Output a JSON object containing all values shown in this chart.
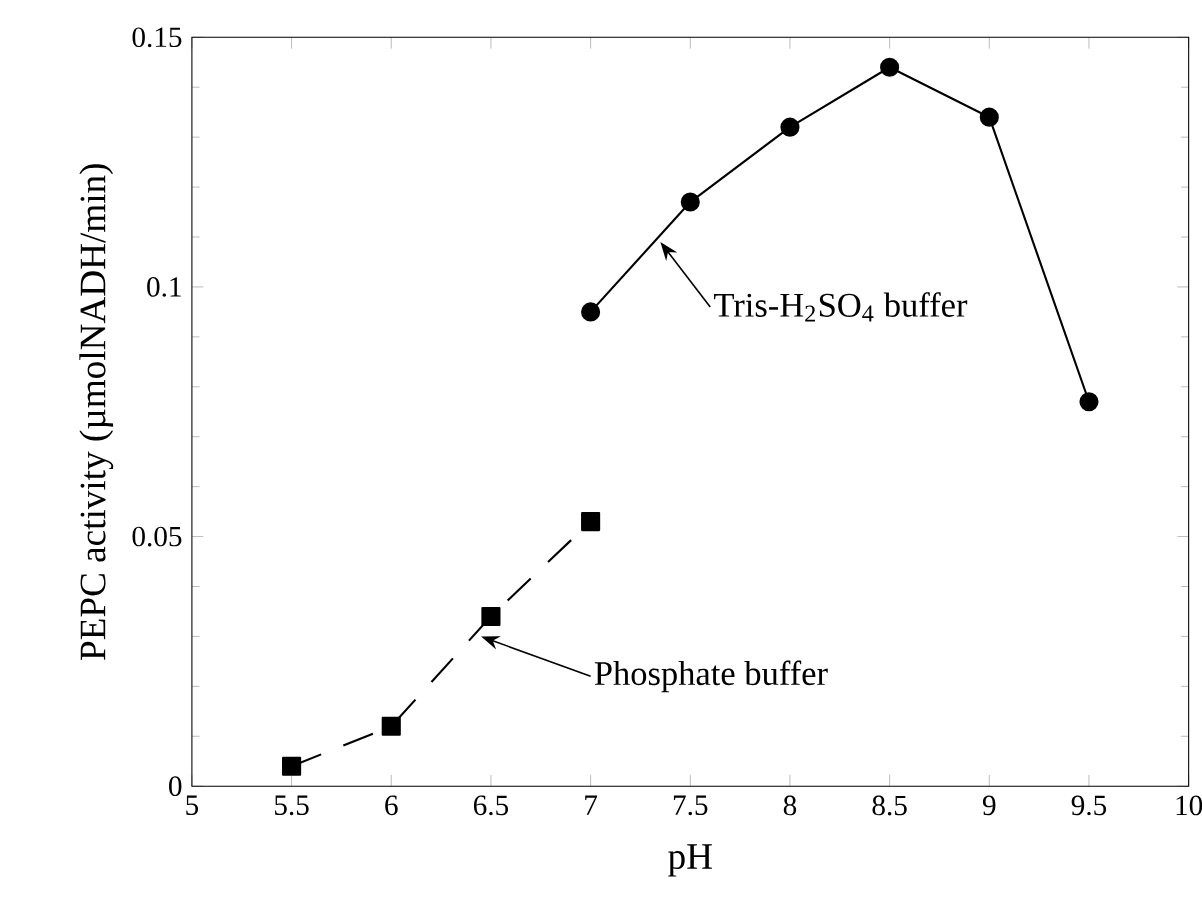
{
  "chart_data": {
    "type": "line",
    "xlabel": "pH",
    "ylabel": "PEPC activity (µmolNADH/min)",
    "series": [
      {
        "x": [
          7,
          7.5,
          8,
          8.5,
          9,
          9.5
        ],
        "values": [
          0.095,
          0.117,
          0.132,
          0.144,
          0.134,
          0.077
        ],
        "color": "#000000",
        "marker": "circle",
        "line_style": "solid"
      },
      {
        "x": [
          5.5,
          6,
          6.5,
          7
        ],
        "values": [
          0.004,
          0.012,
          0.034,
          0.053
        ],
        "color": "#000000",
        "marker": "square",
        "line_style": "dashed"
      }
    ],
    "xlim": [
      5,
      10
    ],
    "ylim": [
      0,
      0.15
    ],
    "xticks": [
      5,
      5.5,
      6,
      6.5,
      7,
      7.5,
      8,
      8.5,
      9,
      9.5,
      10
    ],
    "yticks": [
      0,
      0.05,
      0.1,
      0.15
    ],
    "grid": false,
    "annotations": [
      {
        "text": "Tris-H$_{2}$SO$_{4}$ buffer",
        "x": 7.35,
        "y": 0.109
      },
      {
        "text": "Phosphate buffer",
        "x": 6.45,
        "y": 0.03
      }
    ]
  }
}
